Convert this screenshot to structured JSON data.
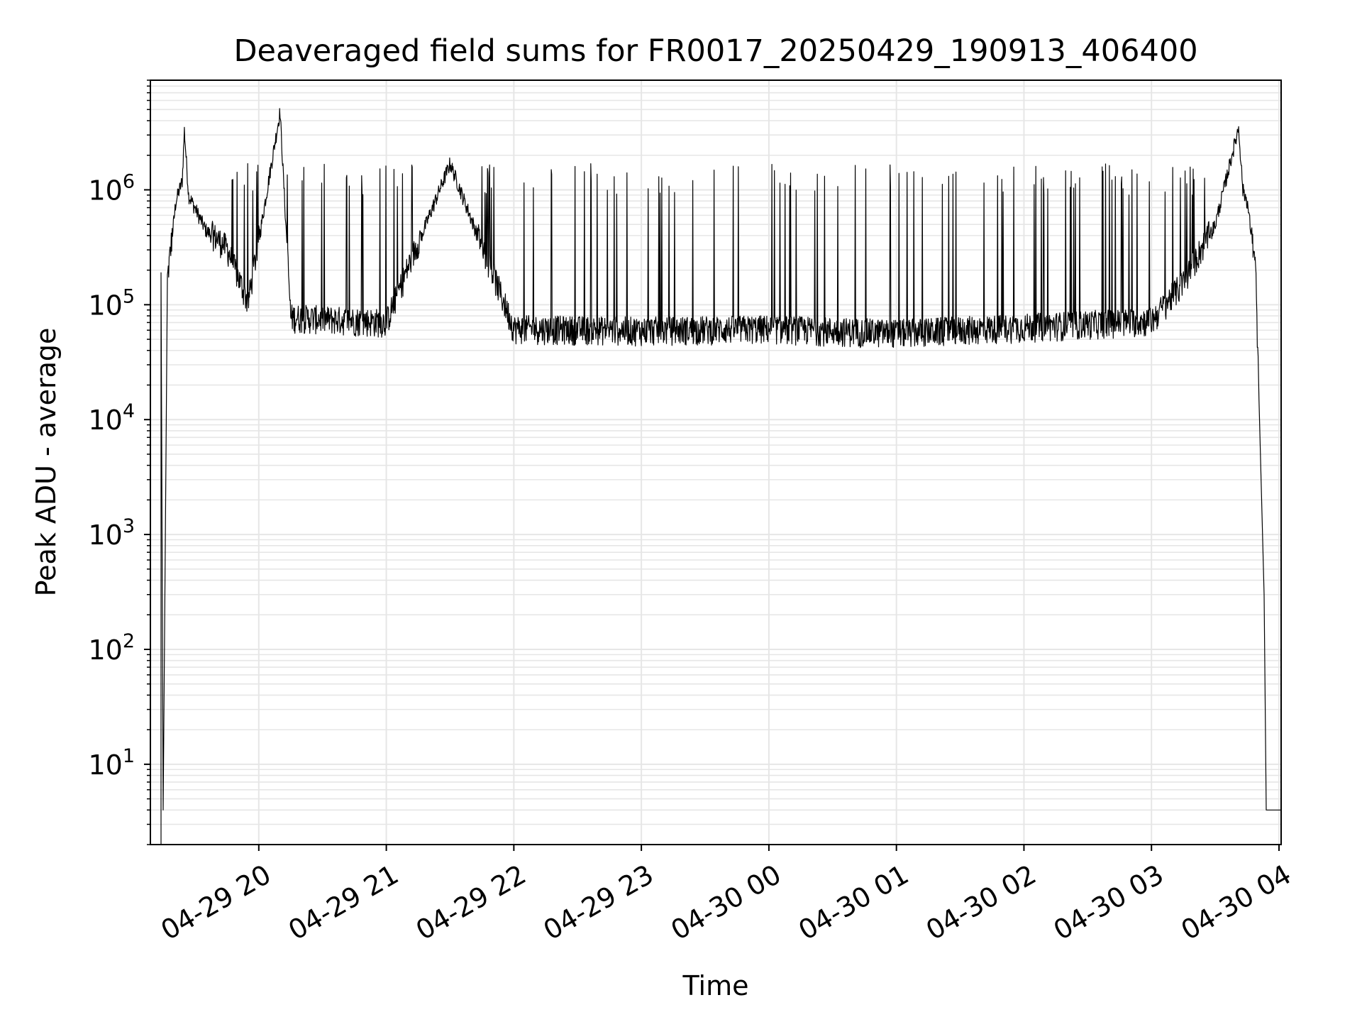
{
  "chart_data": {
    "type": "line",
    "title": "Deaveraged field sums for FR0017_20250429_190913_406400",
    "xlabel": "Time",
    "ylabel": "Peak ADU - average",
    "yscale": "log",
    "ylim": [
      2,
      9000000
    ],
    "xlim": [
      "2025-04-29 19:09",
      "2025-04-30 04:01"
    ],
    "grid": "major and minor",
    "x_ticks": [
      "04-29 20",
      "04-29 21",
      "04-29 22",
      "04-29 23",
      "04-30 00",
      "04-30 01",
      "04-30 02",
      "04-30 03",
      "04-30 04"
    ],
    "y_ticks": [
      {
        "value": 10,
        "base": "10",
        "exp": "1"
      },
      {
        "value": 100,
        "base": "10",
        "exp": "2"
      },
      {
        "value": 1000,
        "base": "10",
        "exp": "3"
      },
      {
        "value": 10000,
        "base": "10",
        "exp": "4"
      },
      {
        "value": 100000,
        "base": "10",
        "exp": "5"
      },
      {
        "value": 1000000,
        "base": "10",
        "exp": "6"
      }
    ],
    "series": [
      {
        "color": "#000000",
        "points": [
          [
            "2025-04-29 19:14",
            2
          ],
          [
            "2025-04-29 19:14",
            190000
          ],
          [
            "2025-04-29 19:15",
            4
          ],
          [
            "2025-04-29 19:17",
            160000
          ],
          [
            "2025-04-29 19:21",
            800000
          ],
          [
            "2025-04-29 19:24",
            1200000
          ],
          [
            "2025-04-29 19:25",
            3300000
          ],
          [
            "2025-04-29 19:27",
            900000
          ],
          [
            "2025-04-29 19:35",
            450000
          ],
          [
            "2025-04-29 19:45",
            300000
          ],
          [
            "2025-04-29 19:55",
            100000
          ],
          [
            "2025-04-29 20:10",
            4800000
          ],
          [
            "2025-04-29 20:15",
            75000
          ],
          [
            "2025-04-29 21:00",
            68000
          ],
          [
            "2025-04-29 21:30",
            1700000
          ],
          [
            "2025-04-29 22:00",
            60000
          ],
          [
            "2025-04-29 23:00",
            58000
          ],
          [
            "2025-04-30 00:00",
            60000
          ],
          [
            "2025-04-30 01:00",
            55000
          ],
          [
            "2025-04-30 02:00",
            62000
          ],
          [
            "2025-04-30 03:00",
            70000
          ],
          [
            "2025-04-30 03:15",
            150000
          ],
          [
            "2025-04-30 03:30",
            500000
          ],
          [
            "2025-04-30 03:41",
            3500000
          ],
          [
            "2025-04-30 03:43",
            1000000
          ],
          [
            "2025-04-30 03:45",
            800000
          ],
          [
            "2025-04-30 03:49",
            200000
          ],
          [
            "2025-04-30 03:53",
            300
          ],
          [
            "2025-04-30 03:54",
            4
          ],
          [
            "2025-04-30 04:01",
            4
          ]
        ]
      }
    ]
  }
}
